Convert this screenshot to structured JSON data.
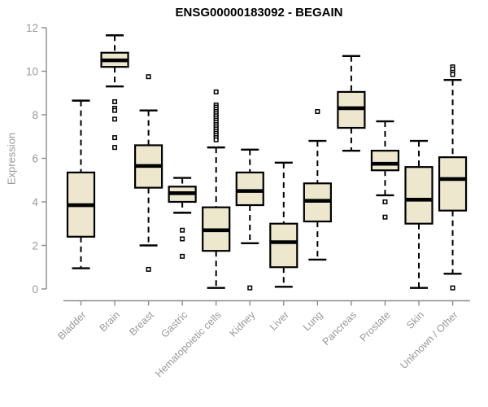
{
  "chart_data": {
    "type": "box",
    "title": "ENSG00000183092 - BEGAIN",
    "xlabel": "",
    "ylabel": "Expression",
    "ylim": [
      0,
      12
    ],
    "yticks": [
      0,
      2,
      4,
      6,
      8,
      10,
      12
    ],
    "grid": false,
    "legend": "none",
    "colors": {
      "box_fill": "#EDE7CD",
      "box_border": "#000000",
      "median": "#000000",
      "whisker": "#000000",
      "axis": "#8C8C8C",
      "tick_text": "#999999",
      "title_text": "#000000"
    },
    "categories": [
      "Bladder",
      "Brain",
      "Breast",
      "Gastric",
      "Hematopoietic cells",
      "Kidney",
      "Liver",
      "Lung",
      "Pancreas",
      "Prostate",
      "Skin",
      "Unknown / Other"
    ],
    "series": [
      {
        "name": "Bladder",
        "whisker_low": 0.95,
        "q1": 2.4,
        "median": 3.85,
        "q3": 5.35,
        "whisker_high": 8.65,
        "outliers": []
      },
      {
        "name": "Brain",
        "whisker_low": 9.3,
        "q1": 10.2,
        "median": 10.5,
        "q3": 10.85,
        "whisker_high": 11.65,
        "outliers": [
          8.6,
          8.3,
          8.2,
          7.8,
          6.95,
          6.5
        ]
      },
      {
        "name": "Breast",
        "whisker_low": 2.0,
        "q1": 4.65,
        "median": 5.65,
        "q3": 6.6,
        "whisker_high": 8.2,
        "outliers": [
          9.75,
          0.9
        ]
      },
      {
        "name": "Gastric",
        "whisker_low": 3.5,
        "q1": 4.0,
        "median": 4.4,
        "q3": 4.7,
        "whisker_high": 5.1,
        "outliers": [
          2.7,
          2.3,
          1.5
        ]
      },
      {
        "name": "Hematopoietic cells",
        "whisker_low": 0.05,
        "q1": 1.75,
        "median": 2.7,
        "q3": 3.75,
        "whisker_high": 6.5,
        "outliers": [
          9.05,
          8.45,
          8.35,
          8.25,
          8.15,
          8.05,
          7.95,
          7.85,
          7.75,
          7.65,
          7.55,
          7.45,
          7.35,
          7.25,
          7.15,
          7.05,
          6.95,
          6.85
        ]
      },
      {
        "name": "Kidney",
        "whisker_low": 2.1,
        "q1": 3.85,
        "median": 4.5,
        "q3": 5.35,
        "whisker_high": 6.4,
        "outliers": [
          0.05
        ]
      },
      {
        "name": "Liver",
        "whisker_low": 0.1,
        "q1": 1.0,
        "median": 2.15,
        "q3": 3.0,
        "whisker_high": 5.8,
        "outliers": []
      },
      {
        "name": "Lung",
        "whisker_low": 1.35,
        "q1": 3.1,
        "median": 4.05,
        "q3": 4.85,
        "whisker_high": 6.8,
        "outliers": [
          8.15
        ]
      },
      {
        "name": "Pancreas",
        "whisker_low": 6.35,
        "q1": 7.4,
        "median": 8.3,
        "q3": 9.05,
        "whisker_high": 10.7,
        "outliers": []
      },
      {
        "name": "Prostate",
        "whisker_low": 4.3,
        "q1": 5.45,
        "median": 5.75,
        "q3": 6.35,
        "whisker_high": 7.7,
        "outliers": [
          4.0,
          3.3
        ]
      },
      {
        "name": "Skin",
        "whisker_low": 0.05,
        "q1": 3.0,
        "median": 4.1,
        "q3": 5.6,
        "whisker_high": 6.8,
        "outliers": []
      },
      {
        "name": "Unknown / Other",
        "whisker_low": 0.7,
        "q1": 3.6,
        "median": 5.05,
        "q3": 6.05,
        "whisker_high": 9.6,
        "outliers": [
          10.2,
          10.1,
          9.95,
          9.85,
          0.05
        ]
      }
    ]
  }
}
